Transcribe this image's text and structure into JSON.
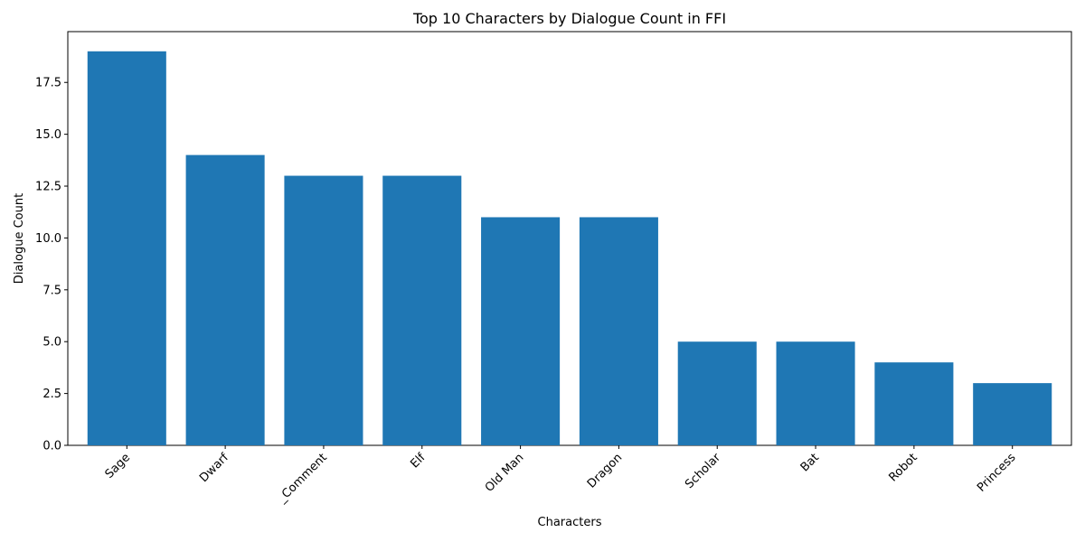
{
  "chart_data": {
    "type": "bar",
    "title": "Top 10 Characters by Dialogue Count in FFI",
    "xlabel": "Characters",
    "ylabel": "Dialogue Count",
    "categories": [
      "Sage",
      "Dwarf",
      "_Comment",
      "Elf",
      "Old Man",
      "Dragon",
      "Scholar",
      "Bat",
      "Robot",
      "Princess"
    ],
    "values": [
      19,
      14,
      13,
      13,
      11,
      11,
      5,
      5,
      4,
      3
    ],
    "ylim": [
      0,
      19.95
    ],
    "yticks": [
      0.0,
      2.5,
      5.0,
      7.5,
      10.0,
      12.5,
      15.0,
      17.5
    ],
    "ytick_labels": [
      "0.0",
      "2.5",
      "5.0",
      "7.5",
      "10.0",
      "12.5",
      "15.0",
      "17.5"
    ],
    "bar_color": "#1f77b4",
    "grid": false,
    "legend": "none"
  }
}
